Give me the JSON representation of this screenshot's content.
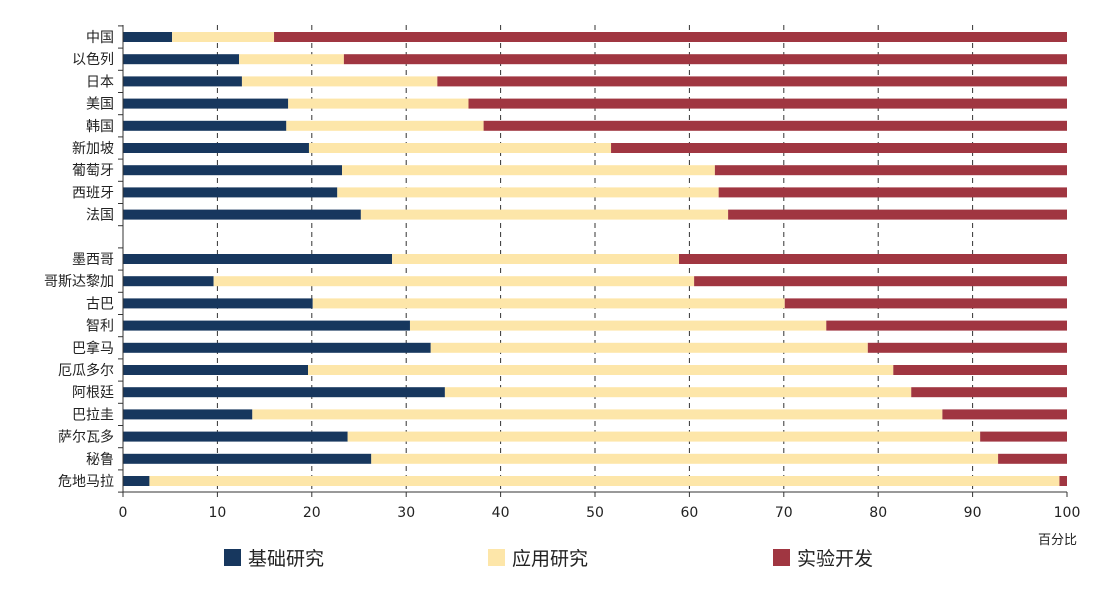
{
  "chart_data": {
    "type": "bar",
    "orientation": "horizontal",
    "stacked": true,
    "title": "",
    "xlabel": "百分比",
    "ylabel": "",
    "xlim": [
      0,
      100
    ],
    "xticks": [
      "0",
      "10",
      "20",
      "30",
      "40",
      "50",
      "60",
      "70",
      "80",
      "90",
      "100"
    ],
    "grid": true,
    "legend_position": "bottom",
    "categories": [
      "中国",
      "以色列",
      "日本",
      "美国",
      "韩国",
      "新加坡",
      "葡萄牙",
      "西班牙",
      "法国",
      "",
      "墨西哥",
      "哥斯达黎加",
      "古巴",
      "智利",
      "巴拿马",
      "厄瓜多尔",
      "阿根廷",
      "巴拉圭",
      "萨尔瓦多",
      "秘鲁",
      "危地马拉"
    ],
    "series": [
      {
        "name": "基础研究",
        "color": "#17375e",
        "values": [
          5.2,
          12.3,
          12.6,
          17.5,
          17.3,
          19.7,
          23.2,
          22.7,
          25.2,
          null,
          28.5,
          9.6,
          20.1,
          30.4,
          32.6,
          19.6,
          34.1,
          13.7,
          23.8,
          26.3,
          2.8
        ]
      },
      {
        "name": "应用研究",
        "color": "#fde6a9",
        "values": [
          10.8,
          11.1,
          20.7,
          19.1,
          20.9,
          32.0,
          39.5,
          40.4,
          38.9,
          null,
          30.4,
          50.9,
          50.0,
          44.1,
          46.3,
          62.0,
          49.4,
          73.1,
          67.0,
          66.4,
          96.4
        ]
      },
      {
        "name": "实验开发",
        "color": "#a03641",
        "values": [
          84.0,
          76.6,
          66.7,
          63.4,
          61.8,
          48.3,
          37.3,
          36.9,
          35.9,
          null,
          41.1,
          39.5,
          29.9,
          25.5,
          21.1,
          18.4,
          16.5,
          13.2,
          9.2,
          7.3,
          0.8
        ]
      }
    ]
  }
}
